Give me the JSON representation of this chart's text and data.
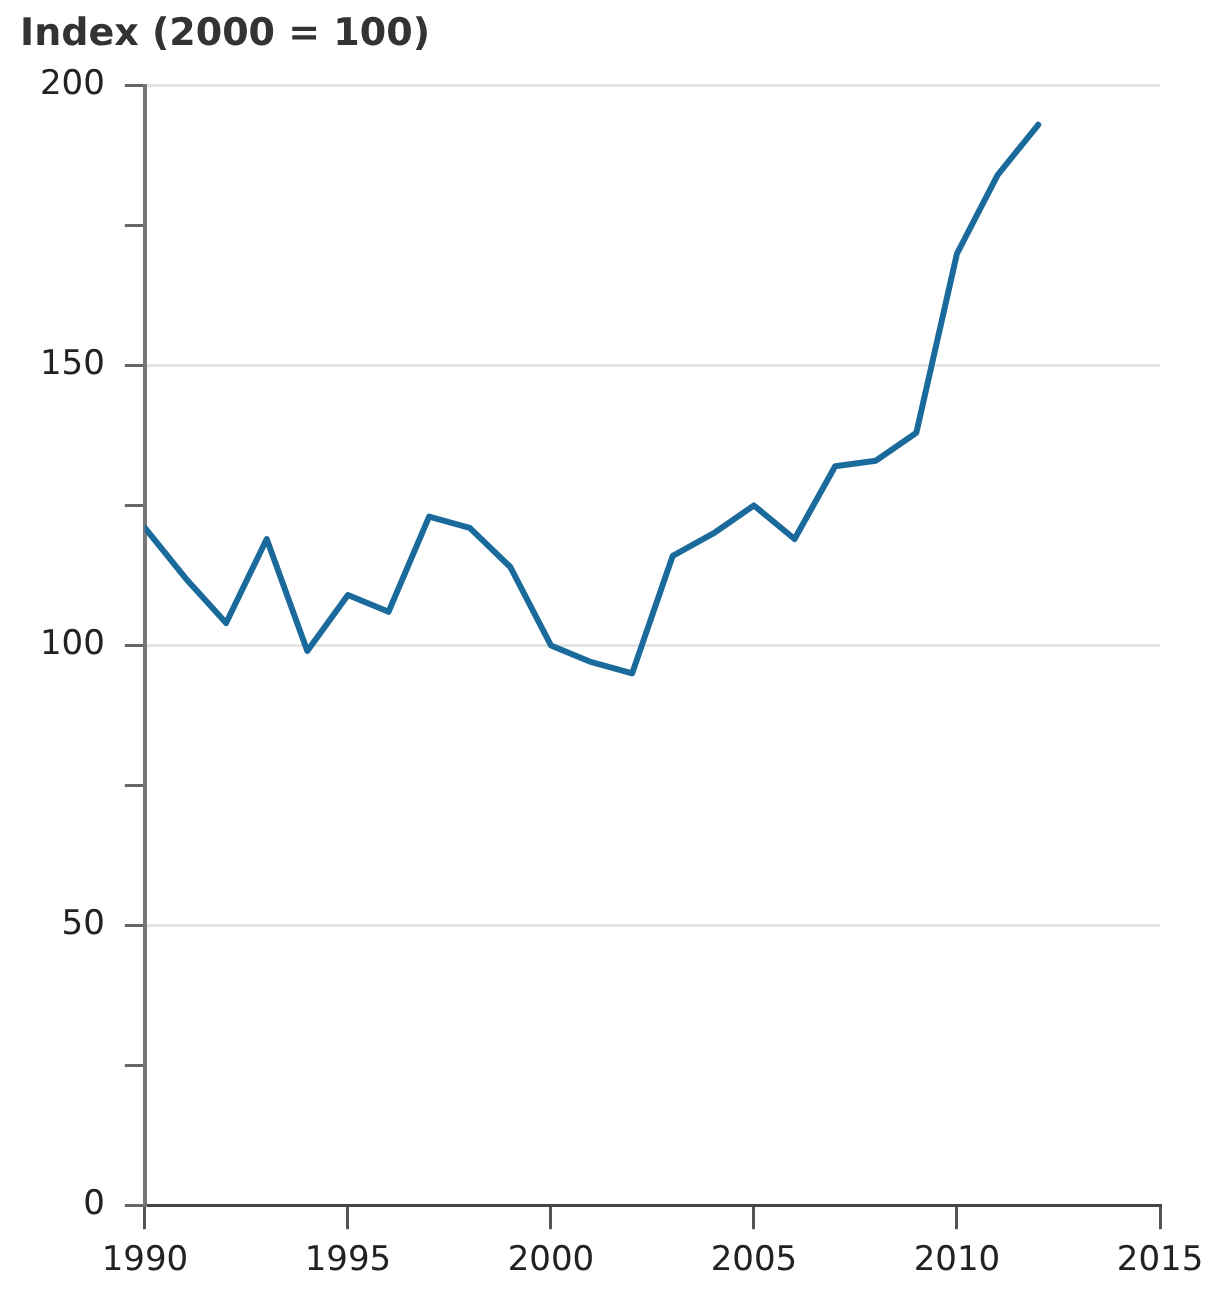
{
  "chart_data": {
    "type": "line",
    "ylabel": "Index (2000 = 100)",
    "x": [
      1990,
      1991,
      1992,
      1993,
      1994,
      1995,
      1996,
      1997,
      1998,
      1999,
      2000,
      2001,
      2002,
      2003,
      2004,
      2005,
      2006,
      2007,
      2008,
      2009,
      2010,
      2011,
      2012
    ],
    "series": [
      {
        "color": "#1a6b9c",
        "values": [
          121,
          112,
          104,
          119,
          99,
          109,
          106,
          123,
          121,
          114,
          100,
          97,
          95,
          116,
          120,
          125,
          119,
          132,
          133,
          138,
          170,
          184,
          193
        ]
      }
    ],
    "xlim": [
      1990,
      2015
    ],
    "xticks": [
      1990,
      1995,
      2000,
      2005,
      2010,
      2015
    ],
    "ylim": [
      0,
      200
    ],
    "yticks": [
      0,
      {
        "value": 25,
        "label": null
      },
      50,
      {
        "value": 75,
        "label": null
      },
      100,
      {
        "value": 125,
        "label": null
      },
      150,
      {
        "value": 175,
        "label": null
      },
      200
    ],
    "grid": "y",
    "legend": false,
    "marker": "none",
    "line_style": "solid"
  }
}
